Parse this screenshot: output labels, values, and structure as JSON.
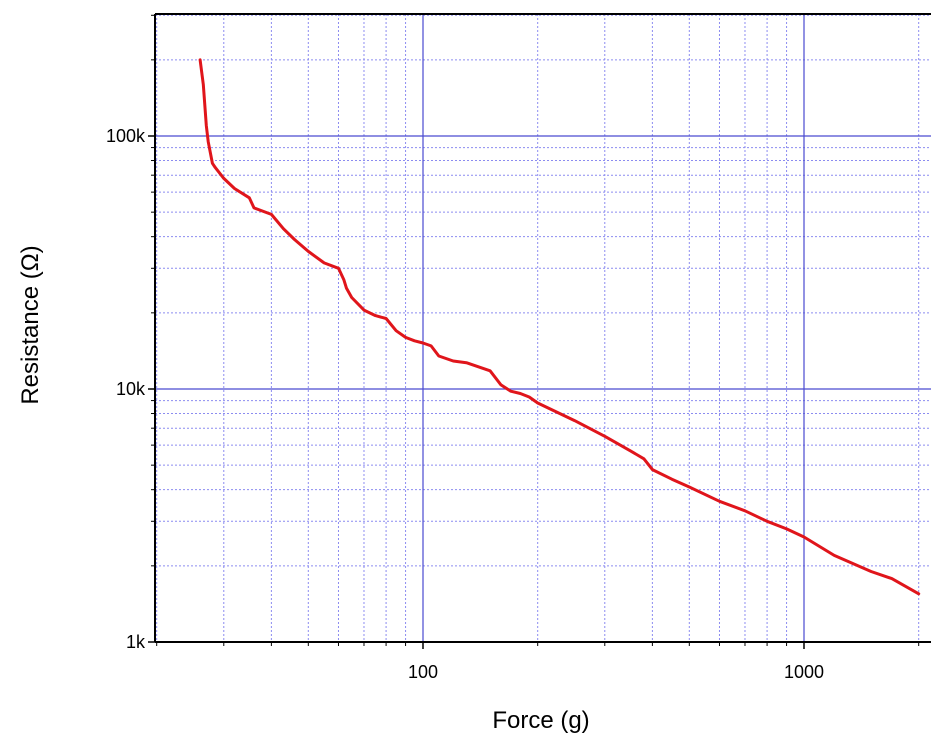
{
  "chart_data": {
    "type": "line",
    "xlabel": "Force (g)",
    "ylabel": "Resistance (Ω)",
    "x_scale": "log",
    "y_scale": "log",
    "xlim": [
      20,
      2100
    ],
    "ylim": [
      1000,
      300000
    ],
    "x_ticks": [
      {
        "value": 100,
        "label": "100"
      },
      {
        "value": 1000,
        "label": "1000"
      }
    ],
    "y_ticks": [
      {
        "value": 1000,
        "label": "1k"
      },
      {
        "value": 10000,
        "label": "10k"
      },
      {
        "value": 100000,
        "label": "100k"
      }
    ],
    "grid": true,
    "colors": {
      "series": "#e0151b",
      "major_grid": "#4a4ad0",
      "minor_grid": "#8c8cf0",
      "axis": "#000000"
    },
    "series": [
      {
        "x": [
          26,
          26.5,
          27,
          27.3,
          28,
          28.5,
          30,
          32,
          35,
          36,
          40,
          43,
          46,
          50,
          55,
          60,
          62,
          63,
          65,
          70,
          75,
          80,
          85,
          90,
          95,
          100,
          105,
          110,
          120,
          130,
          150,
          160,
          170,
          180,
          190,
          200,
          250,
          300,
          350,
          380,
          400,
          450,
          500,
          600,
          700,
          800,
          900,
          1000,
          1200,
          1500,
          1700,
          2000
        ],
        "y": [
          200000,
          160000,
          110000,
          95000,
          78000,
          75000,
          68000,
          62000,
          57000,
          52000,
          49000,
          43000,
          39000,
          35000,
          31500,
          30000,
          27000,
          25000,
          23000,
          20500,
          19500,
          19000,
          17000,
          16000,
          15500,
          15200,
          14800,
          13500,
          12900,
          12700,
          11800,
          10400,
          9800,
          9600,
          9300,
          8800,
          7500,
          6500,
          5700,
          5300,
          4800,
          4400,
          4100,
          3600,
          3300,
          3000,
          2800,
          2600,
          2200,
          1900,
          1780,
          1550
        ]
      }
    ]
  }
}
